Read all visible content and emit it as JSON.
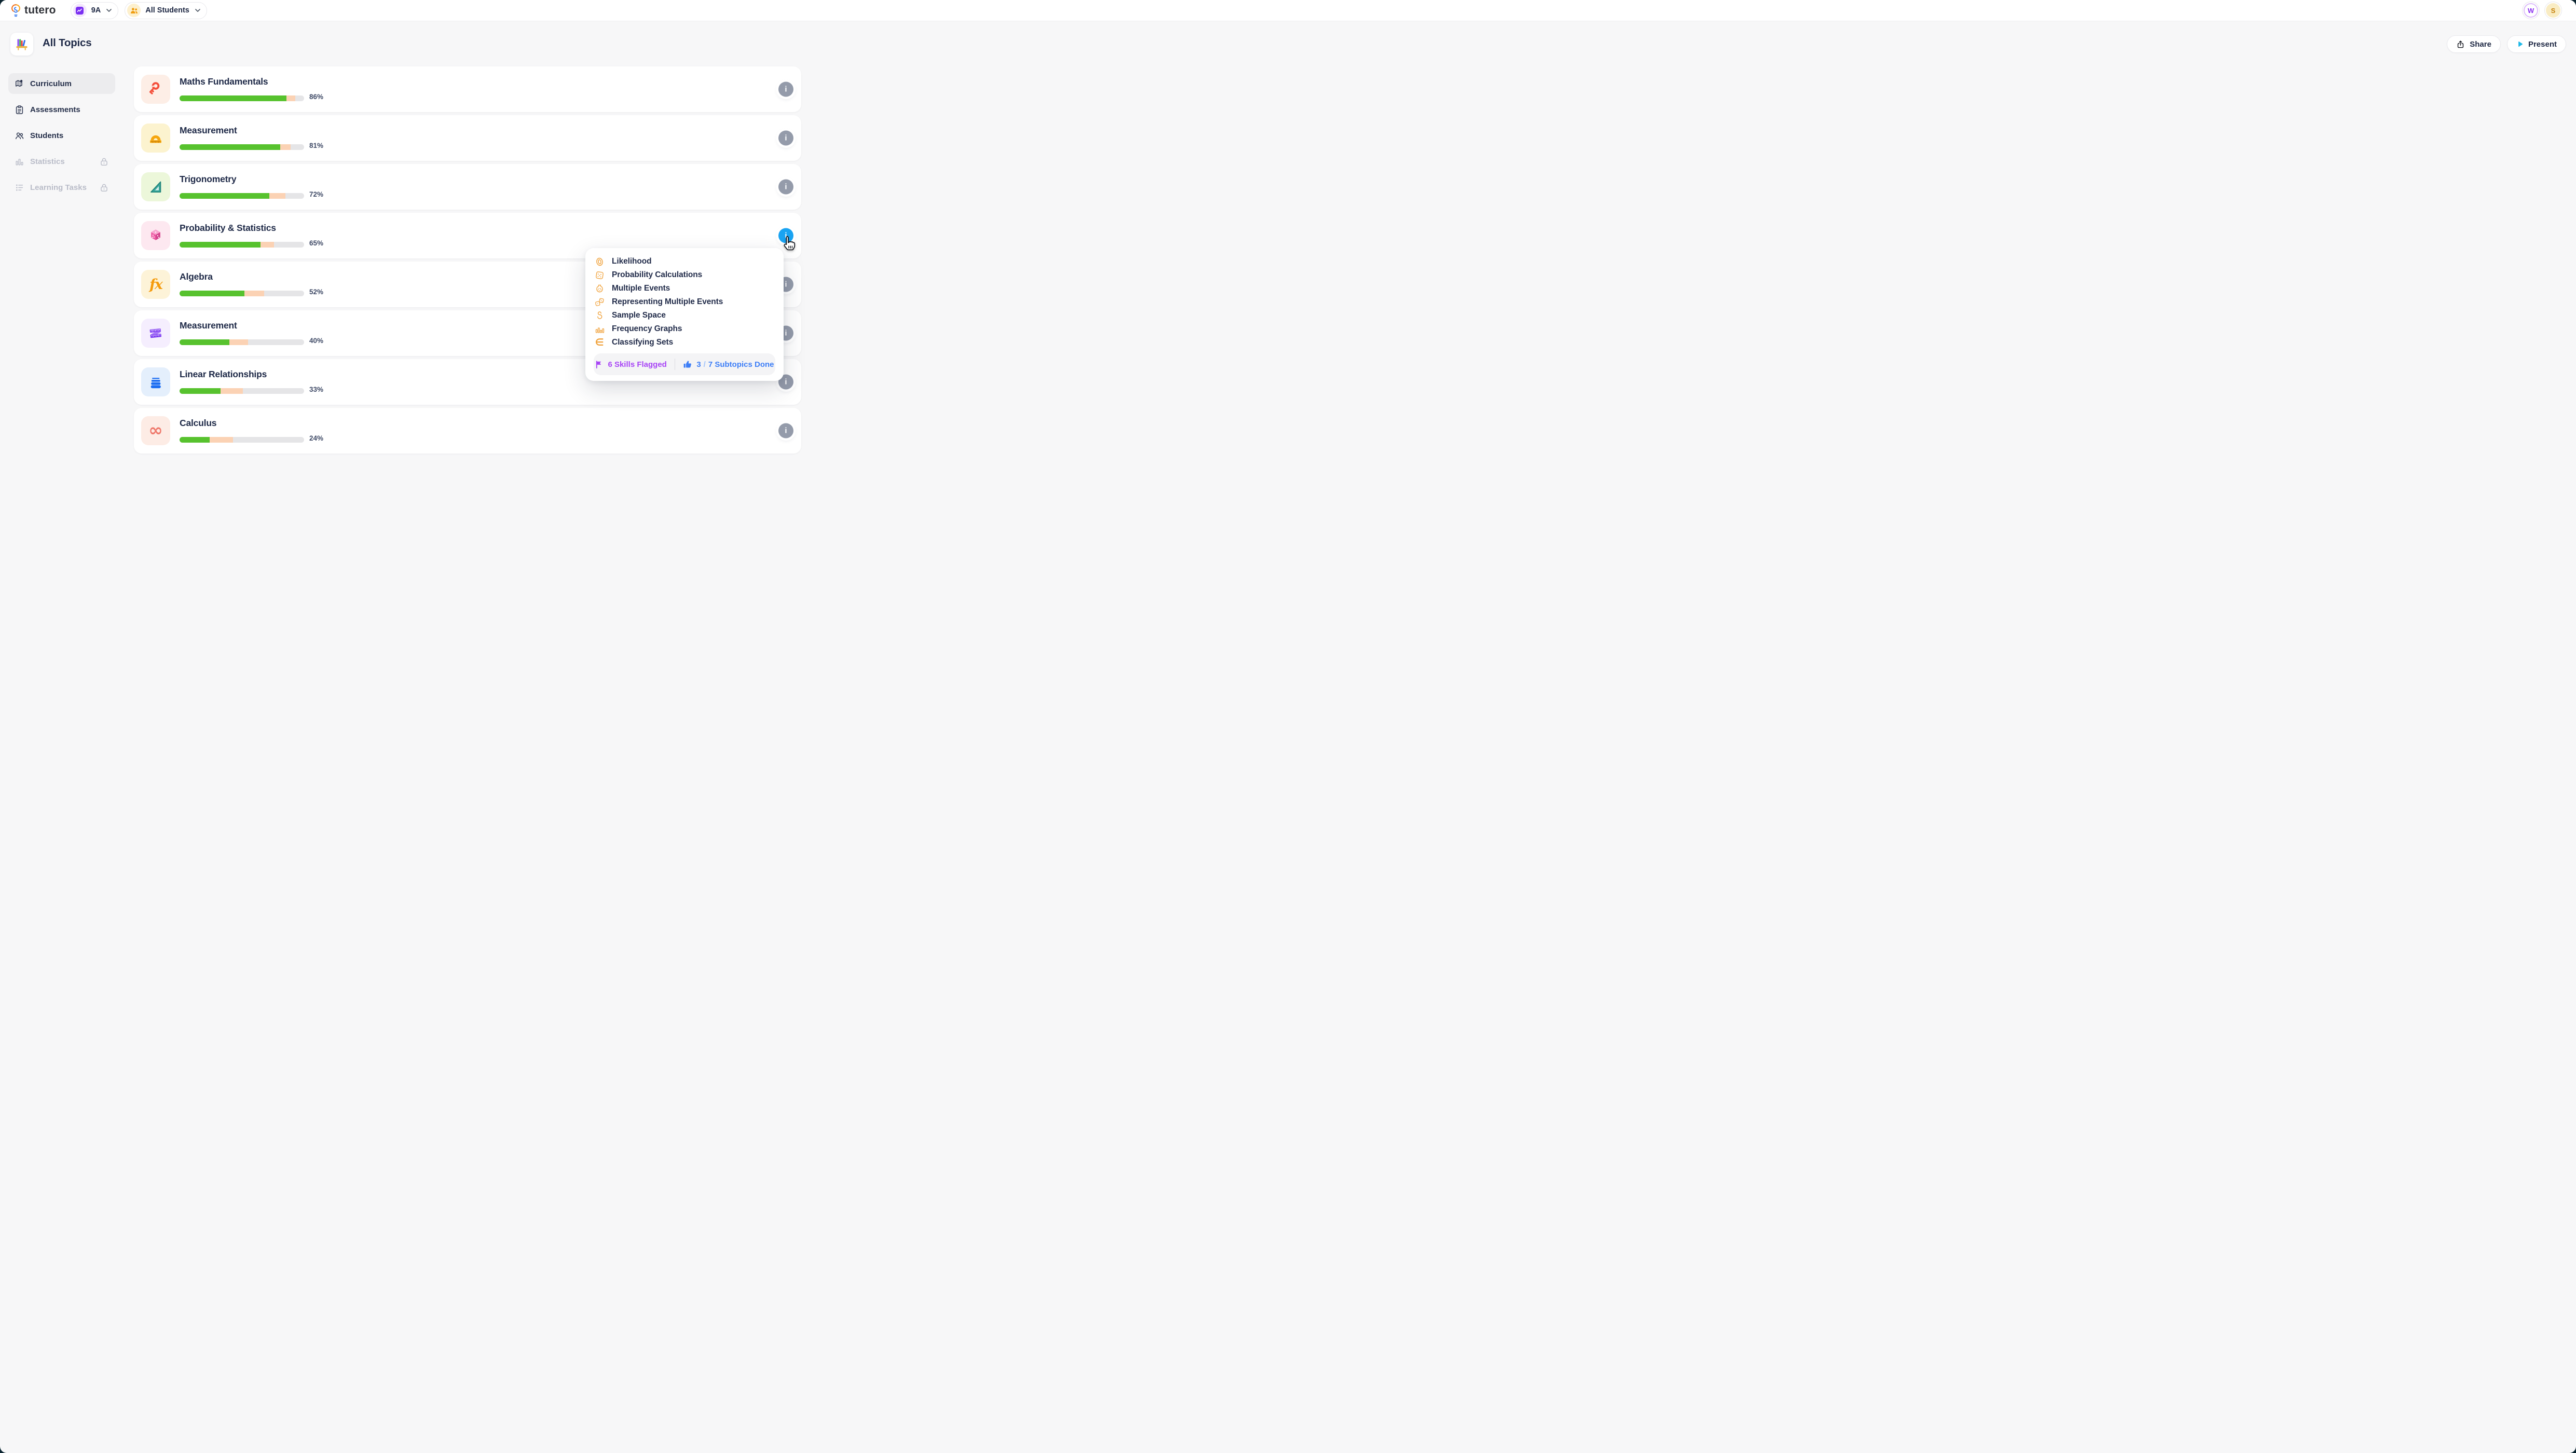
{
  "topbar": {
    "brand": "tutero",
    "class_selector": {
      "label": "9A",
      "icon": "class-zigzag-icon"
    },
    "student_selector": {
      "label": "All Students",
      "icon": "students-group-icon"
    },
    "avatars": [
      {
        "initial": "W"
      },
      {
        "initial": "S"
      }
    ]
  },
  "header": {
    "title": "All Topics",
    "icon": "bookshelf-icon",
    "share_label": "Share",
    "present_label": "Present"
  },
  "sidebar": {
    "items": [
      {
        "label": "Curriculum",
        "icon": "map-icon",
        "active": true,
        "locked": false
      },
      {
        "label": "Assessments",
        "icon": "clipboard-icon",
        "active": false,
        "locked": false
      },
      {
        "label": "Students",
        "icon": "people-icon",
        "active": false,
        "locked": false
      },
      {
        "label": "Statistics",
        "icon": "bar-chart-icon",
        "active": false,
        "locked": true
      },
      {
        "label": "Learning Tasks",
        "icon": "task-list-icon",
        "active": false,
        "locked": true
      }
    ]
  },
  "topics": [
    {
      "name": "Maths Fundamentals",
      "percent_label": "86%",
      "mastery_pct": 86,
      "in_progress_pct": 7,
      "icon": "key-icon",
      "tile_color": "#fdeee6",
      "info_button": "default"
    },
    {
      "name": "Measurement",
      "percent_label": "81%",
      "mastery_pct": 81,
      "in_progress_pct": 8,
      "icon": "protractor-icon",
      "tile_color": "#fcf3cf",
      "info_button": "default"
    },
    {
      "name": "Trigonometry",
      "percent_label": "72%",
      "mastery_pct": 72,
      "in_progress_pct": 13,
      "icon": "triangle-ruler-icon",
      "tile_color": "#ecf7da",
      "info_button": "default"
    },
    {
      "name": "Probability & Statistics",
      "percent_label": "65%",
      "mastery_pct": 65,
      "in_progress_pct": 11,
      "icon": "dice-icon",
      "tile_color": "#fde8f0",
      "info_button": "active"
    },
    {
      "name": "Algebra",
      "percent_label": "52%",
      "mastery_pct": 52,
      "in_progress_pct": 16,
      "icon": "fx-icon",
      "tile_color": "#fdf3d8",
      "info_button": "default"
    },
    {
      "name": "Measurement",
      "percent_label": "40%",
      "mastery_pct": 40,
      "in_progress_pct": 15,
      "icon": "tape-measure-icon",
      "tile_color": "#f5eefe",
      "info_button": "default"
    },
    {
      "name": "Linear Relationships",
      "percent_label": "33%",
      "mastery_pct": 33,
      "in_progress_pct": 18,
      "icon": "stacked-lines-icon",
      "tile_color": "#e4effc",
      "info_button": "default"
    },
    {
      "name": "Calculus",
      "percent_label": "24%",
      "mastery_pct": 24,
      "in_progress_pct": 19,
      "icon": "infinity-icon",
      "tile_color": "#fdece5",
      "info_button": "default"
    }
  ],
  "popup": {
    "subtopics": [
      {
        "label": "Likelihood",
        "icon": "coin-icon"
      },
      {
        "label": "Probability Calculations",
        "icon": "single-die-icon"
      },
      {
        "label": "Multiple Events",
        "icon": "marble-jar-icon"
      },
      {
        "label": "Representing Multiple Events",
        "icon": "two-dice-icon"
      },
      {
        "label": "Sample Space",
        "icon": "sample-loops-icon"
      },
      {
        "label": "Frequency Graphs",
        "icon": "bar-graph-icon"
      },
      {
        "label": "Classifying Sets",
        "icon": "element-of-icon"
      }
    ],
    "footer": {
      "flagged": "6 Skills Flagged",
      "done_current": "3",
      "done_slash": "/",
      "done_rest": "7 Subtopics Done"
    }
  },
  "colors": {
    "mastery_green": "#57c22e",
    "in_progress_peach": "#fbd2b4",
    "track_gray": "#e5e5e7",
    "info_gray": "#949baa",
    "info_blue": "#19a3f2",
    "flag_purple": "#a845f6",
    "done_blue": "#3d7ef7",
    "subtopic_icon_orange": "#f0a23c",
    "accent_cyan": "#1fb9e8"
  },
  "static_icons": [
    "tutero-logo-icon",
    "chevron-down-icon",
    "share-icon",
    "play-icon",
    "flag-icon",
    "thumbs-up-icon",
    "lock-icon",
    "info-icon",
    "cursor-pointer-icon",
    "bookshelf-icon"
  ]
}
